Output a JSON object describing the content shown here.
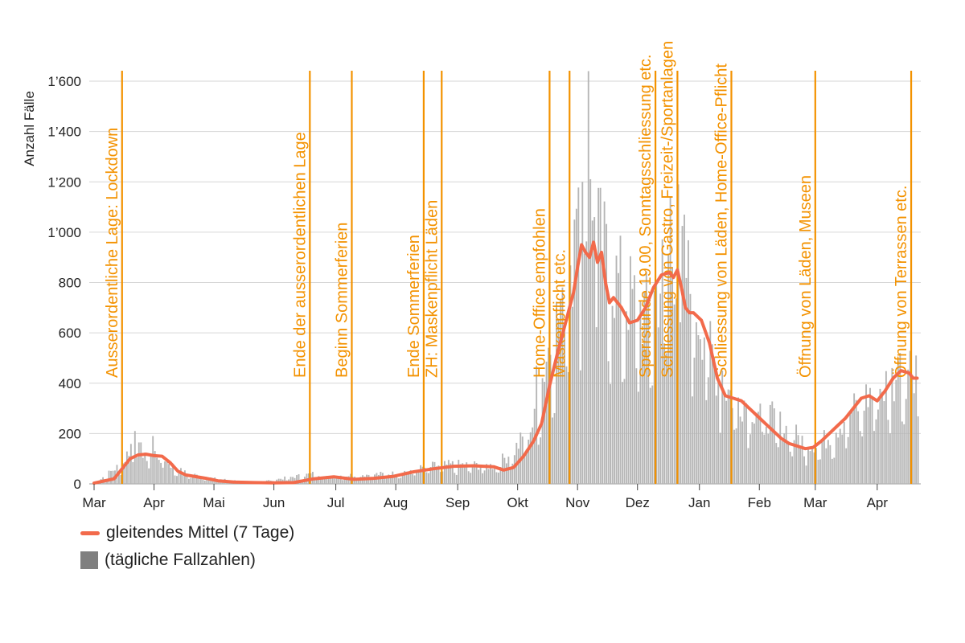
{
  "chart_data": {
    "type": "bar",
    "ylabel": "Anzahl Fälle",
    "ylim": [
      0,
      1600
    ],
    "yticks": [
      0,
      200,
      400,
      600,
      800,
      1000,
      1200,
      1400,
      1600
    ],
    "ytick_labels": [
      "0",
      "200",
      "400",
      "600",
      "800",
      "1’000",
      "1’200",
      "1’400",
      "1’600"
    ],
    "xlabels": [
      "Mar",
      "Apr",
      "Mai",
      "Jun",
      "Jul",
      "Aug",
      "Sep",
      "Okt",
      "Nov",
      "Dez",
      "Jan",
      "Feb",
      "Mar",
      "Apr"
    ],
    "grid": true,
    "colors": {
      "bars": "#b5b5b5",
      "line": "#f26a4b",
      "events": "#f39200",
      "text": "#222222"
    },
    "smoothed_series": {
      "name": "gleitendes Mittel (7 Tage)",
      "x_day": [
        0,
        10,
        14,
        18,
        22,
        26,
        30,
        34,
        38,
        42,
        46,
        50,
        56,
        62,
        70,
        80,
        90,
        100,
        110,
        120,
        130,
        140,
        150,
        160,
        170,
        180,
        190,
        200,
        205,
        210,
        215,
        220,
        224,
        228,
        232,
        236,
        240,
        242,
        244,
        246,
        248,
        250,
        252,
        254,
        256,
        258,
        260,
        264,
        268,
        272,
        276,
        280,
        284,
        288,
        290,
        292,
        294,
        296,
        298,
        300,
        304,
        308,
        312,
        316,
        320,
        324,
        328,
        332,
        336,
        340,
        344,
        348,
        352,
        356,
        360,
        364,
        368,
        372,
        376,
        380,
        384,
        388,
        392,
        396,
        400,
        404,
        408,
        410,
        412
      ],
      "values": [
        3,
        20,
        60,
        100,
        115,
        118,
        112,
        110,
        85,
        50,
        35,
        30,
        22,
        12,
        7,
        5,
        4,
        5,
        20,
        28,
        18,
        22,
        30,
        48,
        60,
        70,
        72,
        68,
        55,
        65,
        110,
        170,
        240,
        390,
        520,
        640,
        760,
        860,
        950,
        920,
        900,
        960,
        880,
        920,
        800,
        720,
        740,
        700,
        640,
        650,
        700,
        780,
        830,
        840,
        820,
        850,
        780,
        700,
        680,
        680,
        650,
        560,
        420,
        350,
        340,
        330,
        300,
        270,
        240,
        210,
        180,
        160,
        150,
        140,
        145,
        170,
        200,
        230,
        260,
        300,
        340,
        350,
        330,
        370,
        420,
        450,
        440,
        420,
        420
      ]
    },
    "daily_series": {
      "name": "(tägliche Fallzahlen)",
      "anchor_day": [
        0,
        14,
        18,
        22,
        28,
        34,
        40,
        46,
        60,
        80,
        110,
        116,
        150,
        170,
        180,
        200,
        210,
        220,
        226,
        232,
        238,
        244,
        248,
        254,
        260,
        270,
        276,
        282,
        288,
        294,
        300,
        306,
        312,
        318,
        324,
        336,
        348,
        356,
        364,
        376,
        388,
        396,
        402,
        406,
        410,
        412
      ],
      "anchor_value": [
        5,
        80,
        150,
        130,
        120,
        110,
        60,
        40,
        20,
        5,
        40,
        30,
        40,
        70,
        75,
        70,
        130,
        240,
        500,
        650,
        900,
        1000,
        1050,
        900,
        800,
        700,
        660,
        760,
        900,
        880,
        700,
        600,
        420,
        350,
        330,
        270,
        200,
        160,
        160,
        260,
        350,
        380,
        420,
        450,
        470,
        460
      ],
      "peaks": [
        [
          20,
          210
        ],
        [
          29,
          190
        ],
        [
          221,
          470
        ],
        [
          234,
          780
        ],
        [
          240,
          1050
        ],
        [
          244,
          1200
        ],
        [
          247,
          1640
        ],
        [
          250,
          1060
        ],
        [
          288,
          1140
        ],
        [
          292,
          1190
        ],
        [
          314,
          450
        ],
        [
          403,
          520
        ],
        [
          411,
          510
        ]
      ]
    }
  },
  "x_axis": {
    "start_label": "Mar",
    "month_ticks": [
      {
        "label": "Mar",
        "day": 0
      },
      {
        "label": "Apr",
        "day": 30
      },
      {
        "label": "Mai",
        "day": 60
      },
      {
        "label": "Jun",
        "day": 90
      },
      {
        "label": "Jul",
        "day": 121
      },
      {
        "label": "Aug",
        "day": 151
      },
      {
        "label": "Sep",
        "day": 182
      },
      {
        "label": "Okt",
        "day": 212
      },
      {
        "label": "Nov",
        "day": 242
      },
      {
        "label": "Dez",
        "day": 272
      },
      {
        "label": "Jan",
        "day": 303
      },
      {
        "label": "Feb",
        "day": 333
      },
      {
        "label": "Mar",
        "day": 361
      },
      {
        "label": "Apr",
        "day": 392
      }
    ]
  },
  "events": [
    {
      "label": "Ausserordentliche Lage: Lockdown",
      "day": 14
    },
    {
      "label": "Ende der ausserordentlichen Lage",
      "day": 108
    },
    {
      "label": "Beginn Sommerferien",
      "day": 129
    },
    {
      "label": "Ende Sommerferien",
      "day": 165
    },
    {
      "label": "ZH: Maskenpflicht Läden",
      "day": 174
    },
    {
      "label": "Home-Office empfohlen",
      "day": 228
    },
    {
      "label": "Maskenpflicht etc.",
      "day": 238
    },
    {
      "label": "Sperrstunde 19.00, Sonntagsschliessung etc.",
      "day": 281
    },
    {
      "label": "Schliessung von Gastro, Freizeit-/Sportanlagen",
      "day": 292
    },
    {
      "label": "Schliessung von Läden, Home-Office-Pflicht",
      "day": 319
    },
    {
      "label": "Öffnung von Läden, Museen",
      "day": 361
    },
    {
      "label": "Öffnung von Terrassen etc.",
      "day": 409
    }
  ],
  "legend": {
    "line_label": "gleitendes Mittel (7 Tage)",
    "bar_label": "(tägliche Fallzahlen)"
  }
}
